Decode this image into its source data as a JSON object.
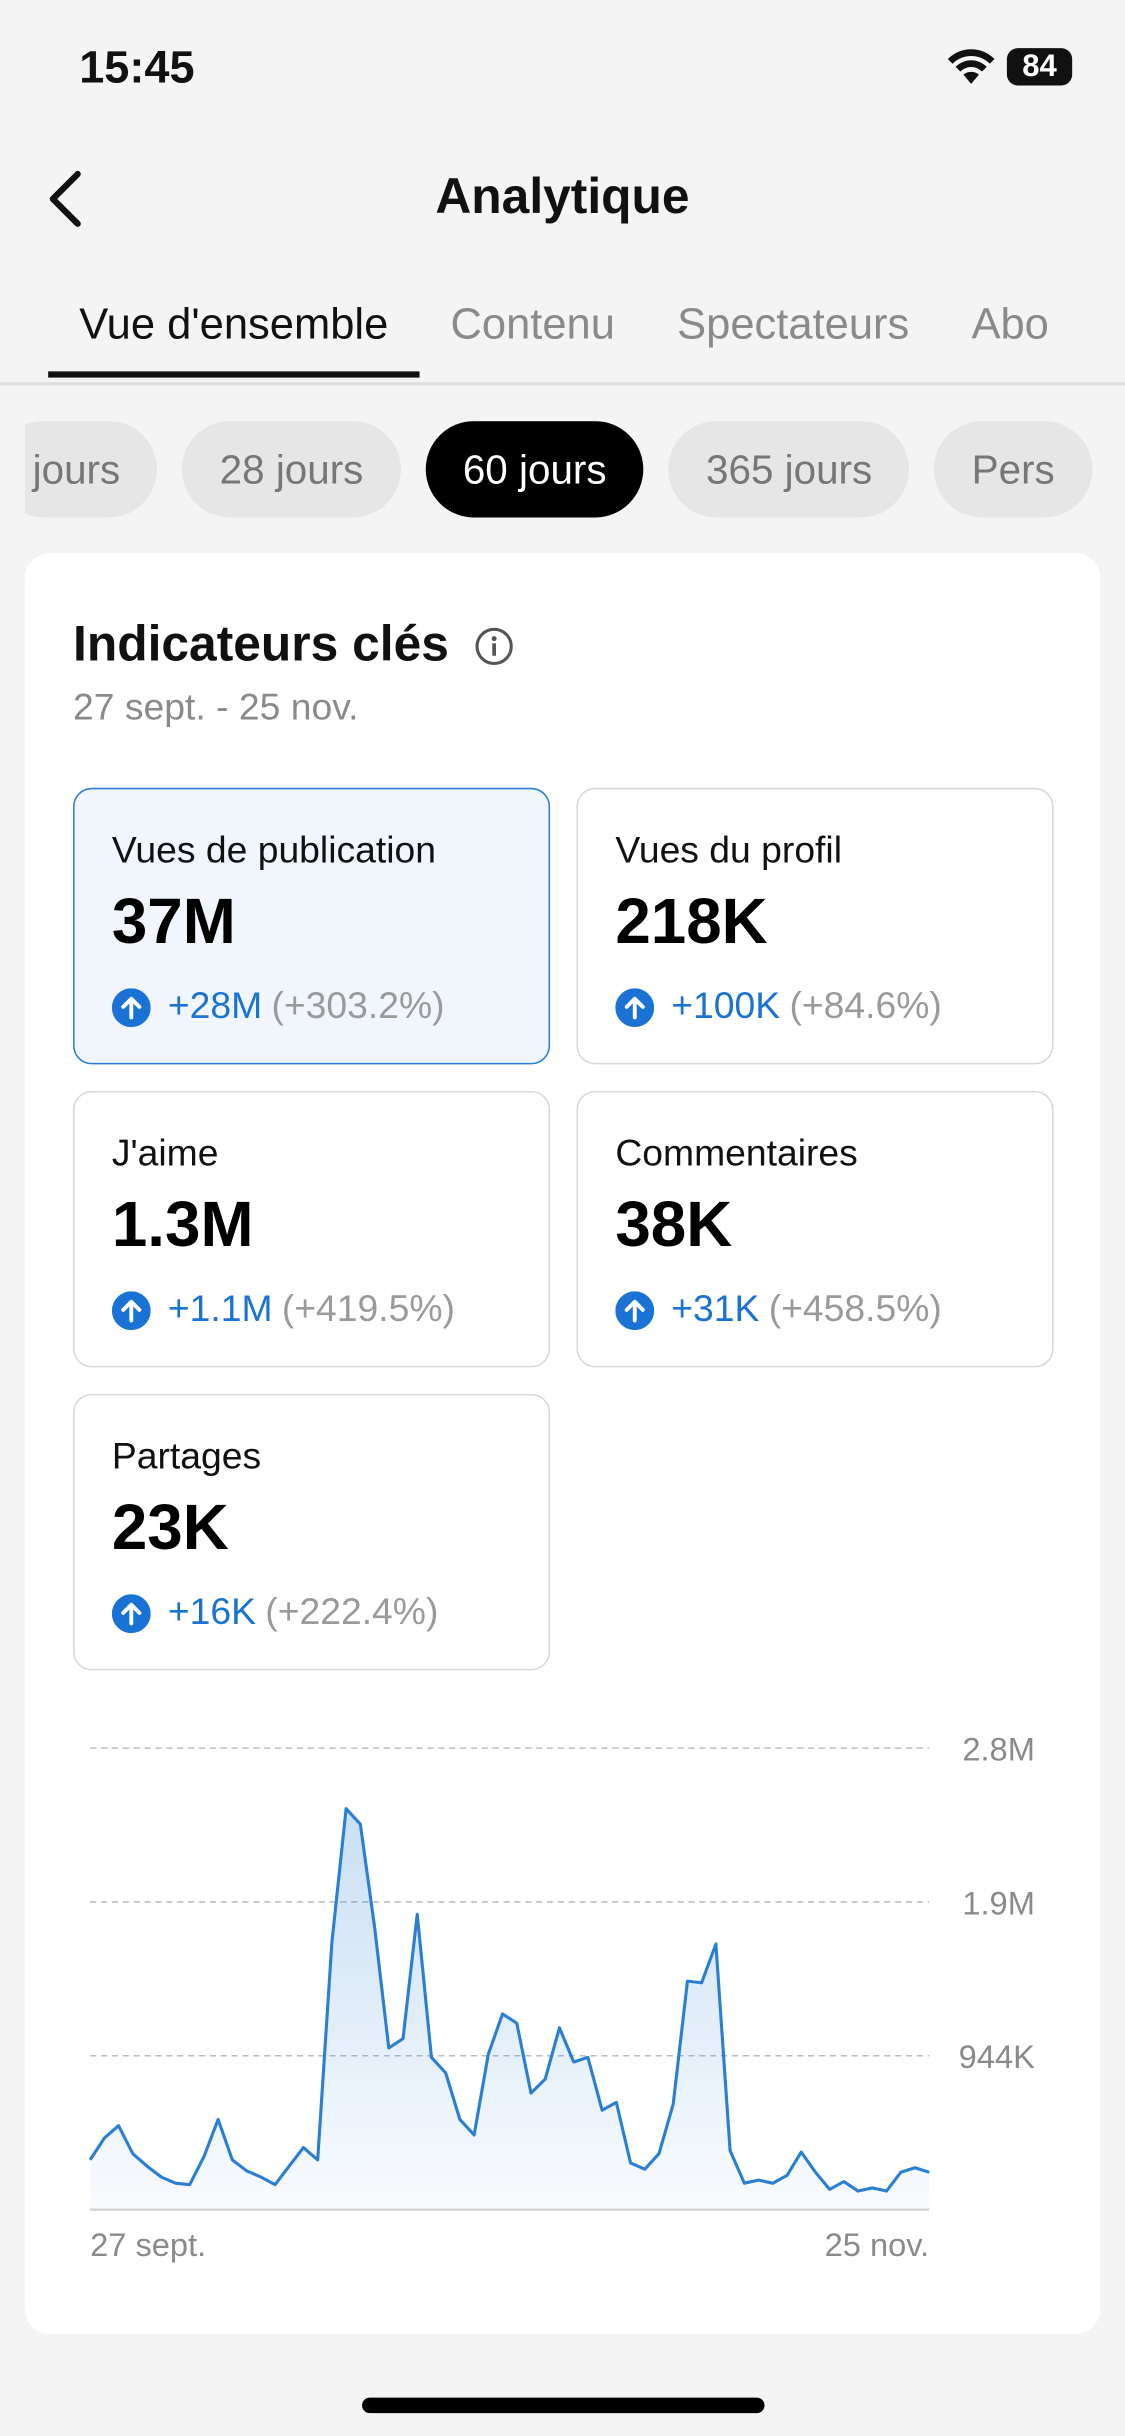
{
  "status_bar": {
    "time": "15:45",
    "battery": "84"
  },
  "header": {
    "title": "Analytique"
  },
  "tabs": {
    "items": [
      "Vue d'ensemble",
      "Contenu",
      "Spectateurs",
      "Abo"
    ],
    "active": 0
  },
  "periods": {
    "items": [
      "jours",
      "28 jours",
      "60 jours",
      "365 jours",
      "Pers"
    ],
    "active": 2
  },
  "card": {
    "title": "Indicateurs clés",
    "date_range": "27 sept. - 25 nov.",
    "metrics": [
      {
        "label": "Vues de publication",
        "value": "37M",
        "change": "+28M",
        "percent": "(+303.2%)"
      },
      {
        "label": "Vues du profil",
        "value": "218K",
        "change": "+100K",
        "percent": "(+84.6%)"
      },
      {
        "label": "J'aime",
        "value": "1.3M",
        "change": "+1.1M",
        "percent": "(+419.5%)"
      },
      {
        "label": "Commentaires",
        "value": "38K",
        "change": "+31K",
        "percent": "(+458.5%)"
      },
      {
        "label": "Partages",
        "value": "23K",
        "change": "+16K",
        "percent": "(+222.4%)"
      }
    ],
    "selected": 0
  },
  "chart_data": {
    "type": "line",
    "color": "#2a7fd4",
    "grid": true,
    "categories": [
      "27 sept.",
      null,
      null,
      null,
      null,
      null,
      null,
      null,
      null,
      null,
      null,
      null,
      null,
      null,
      null,
      null,
      null,
      null,
      null,
      null,
      null,
      null,
      null,
      null,
      null,
      null,
      null,
      null,
      null,
      null,
      null,
      null,
      null,
      null,
      null,
      null,
      null,
      null,
      null,
      null,
      null,
      null,
      null,
      null,
      null,
      null,
      null,
      null,
      null,
      null,
      null,
      null,
      null,
      null,
      null,
      null,
      null,
      null,
      null,
      "25 nov."
    ],
    "values": [
      305000,
      439000,
      515000,
      343000,
      267000,
      200000,
      162000,
      153000,
      324000,
      553000,
      305000,
      238000,
      200000,
      153000,
      267000,
      381000,
      305000,
      1640000,
      2460000,
      2365000,
      1735000,
      992000,
      1049000,
      1812000,
      934000,
      839000,
      553000,
      458000,
      954000,
      1201000,
      1144000,
      715000,
      801000,
      1116000,
      906000,
      934000,
      610000,
      658000,
      286000,
      248000,
      343000,
      648000,
      1402000,
      1392000,
      1630000,
      362000,
      162000,
      181000,
      162000,
      210000,
      353000,
      229000,
      124000,
      172000,
      114000,
      133000,
      114000,
      229000,
      257000,
      229000
    ],
    "ylim": [
      0,
      2832000
    ],
    "yticks": [
      {
        "value": 944000,
        "label": "944K"
      },
      {
        "value": 1888000,
        "label": "1.9M"
      },
      {
        "value": 2832000,
        "label": "2.8M"
      }
    ]
  }
}
